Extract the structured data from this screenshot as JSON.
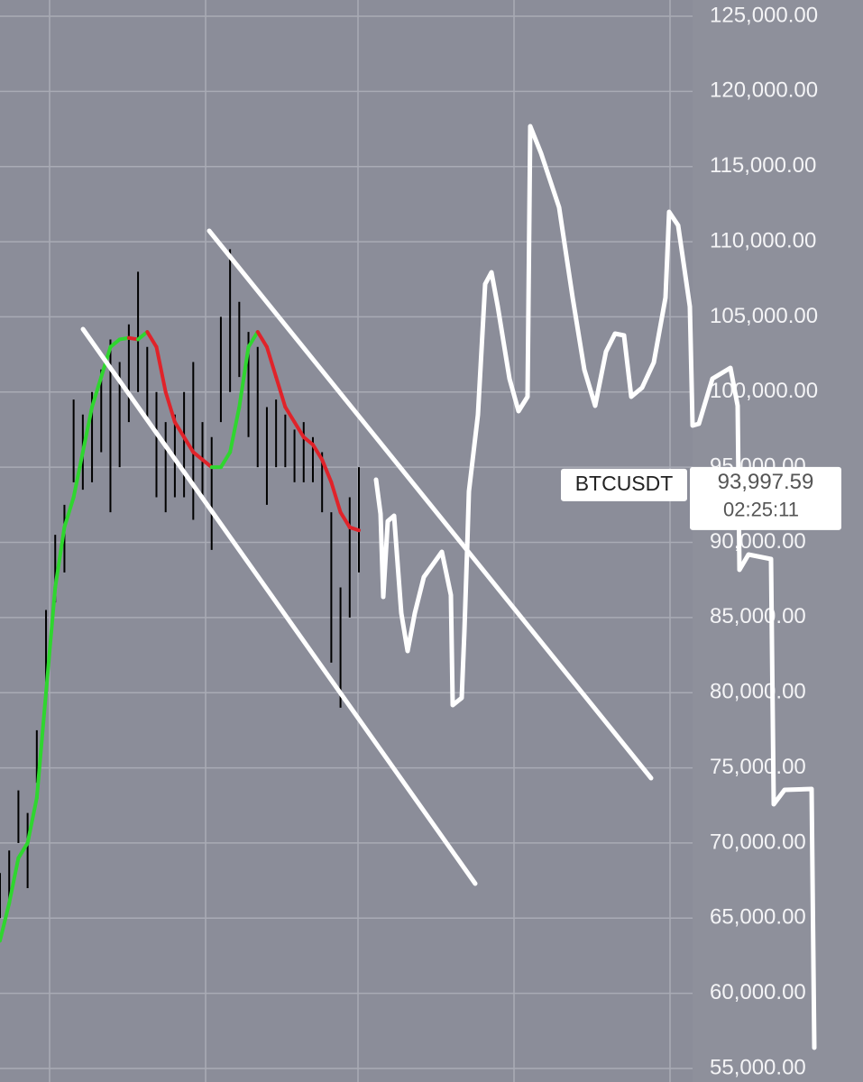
{
  "chart_data": {
    "type": "candlestick",
    "ylim": [
      54100,
      126080
    ],
    "yticks": [
      {
        "value": 125000,
        "label": "125,000.00"
      },
      {
        "value": 120000,
        "label": "120,000.00"
      },
      {
        "value": 115000,
        "label": "115,000.00"
      },
      {
        "value": 110000,
        "label": "110,000.00"
      },
      {
        "value": 105000,
        "label": "105,000.00"
      },
      {
        "value": 100000,
        "label": "100,000.00"
      },
      {
        "value": 95000,
        "label": "95,000.00"
      },
      {
        "value": 90000,
        "label": "90,000.00"
      },
      {
        "value": 85000,
        "label": "85,000.00"
      },
      {
        "value": 80000,
        "label": "80,000.00"
      },
      {
        "value": 75000,
        "label": "75,000.00"
      },
      {
        "value": 70000,
        "label": "70,000.00"
      },
      {
        "value": 65000,
        "label": "65,000.00"
      },
      {
        "value": 60000,
        "label": "60,000.00"
      },
      {
        "value": 55000,
        "label": "55,000.00"
      }
    ],
    "grid": true,
    "candle_color": "#000000",
    "candles": [
      [
        65000,
        68000
      ],
      [
        66000,
        69500
      ],
      [
        70000,
        73500
      ],
      [
        67000,
        72000
      ],
      [
        74000,
        77500
      ],
      [
        80000,
        85500
      ],
      [
        86000,
        90500
      ],
      [
        88000,
        92500
      ],
      [
        94000,
        99500
      ],
      [
        93500,
        98500
      ],
      [
        94000,
        100000
      ],
      [
        96000,
        101500
      ],
      [
        92000,
        103500
      ],
      [
        95000,
        102000
      ],
      [
        98000,
        104500
      ],
      [
        100000,
        108000
      ],
      [
        98000,
        103000
      ],
      [
        93000,
        100000
      ],
      [
        92000,
        98000
      ],
      [
        93000,
        98500
      ],
      [
        93000,
        100000
      ],
      [
        91500,
        102000
      ],
      [
        93000,
        98000
      ],
      [
        89500,
        97000
      ],
      [
        98000,
        105000
      ],
      [
        100000,
        109500
      ],
      [
        101000,
        106000
      ],
      [
        97000,
        104000
      ],
      [
        95000,
        103000
      ],
      [
        92500,
        99000
      ],
      [
        95000,
        99500
      ],
      [
        95000,
        98500
      ],
      [
        94000,
        97500
      ],
      [
        94000,
        98000
      ],
      [
        94000,
        97000
      ],
      [
        92000,
        96000
      ],
      [
        82000,
        92000
      ],
      [
        79000,
        87000
      ],
      [
        85000,
        93000
      ],
      [
        88000,
        95000
      ]
    ],
    "ma_up_color": "#2fd62f",
    "ma_down_color": "#e0232a",
    "ma": [
      63500,
      66000,
      69000,
      70000,
      73000,
      80000,
      87000,
      91000,
      93000,
      96000,
      99000,
      101000,
      103000,
      103500,
      103600,
      103500,
      104000,
      103000,
      100000,
      98000,
      97000,
      96000,
      95500,
      95000,
      95000,
      96000,
      99000,
      103000,
      104000,
      103000,
      101000,
      99000,
      98000,
      97000,
      96500,
      95500,
      94000,
      92000,
      91000,
      90800
    ],
    "last_price": {
      "symbol": "BTCUSDT",
      "value": 93997.59,
      "label": "93,997.59",
      "countdown": "02:25:11"
    }
  }
}
